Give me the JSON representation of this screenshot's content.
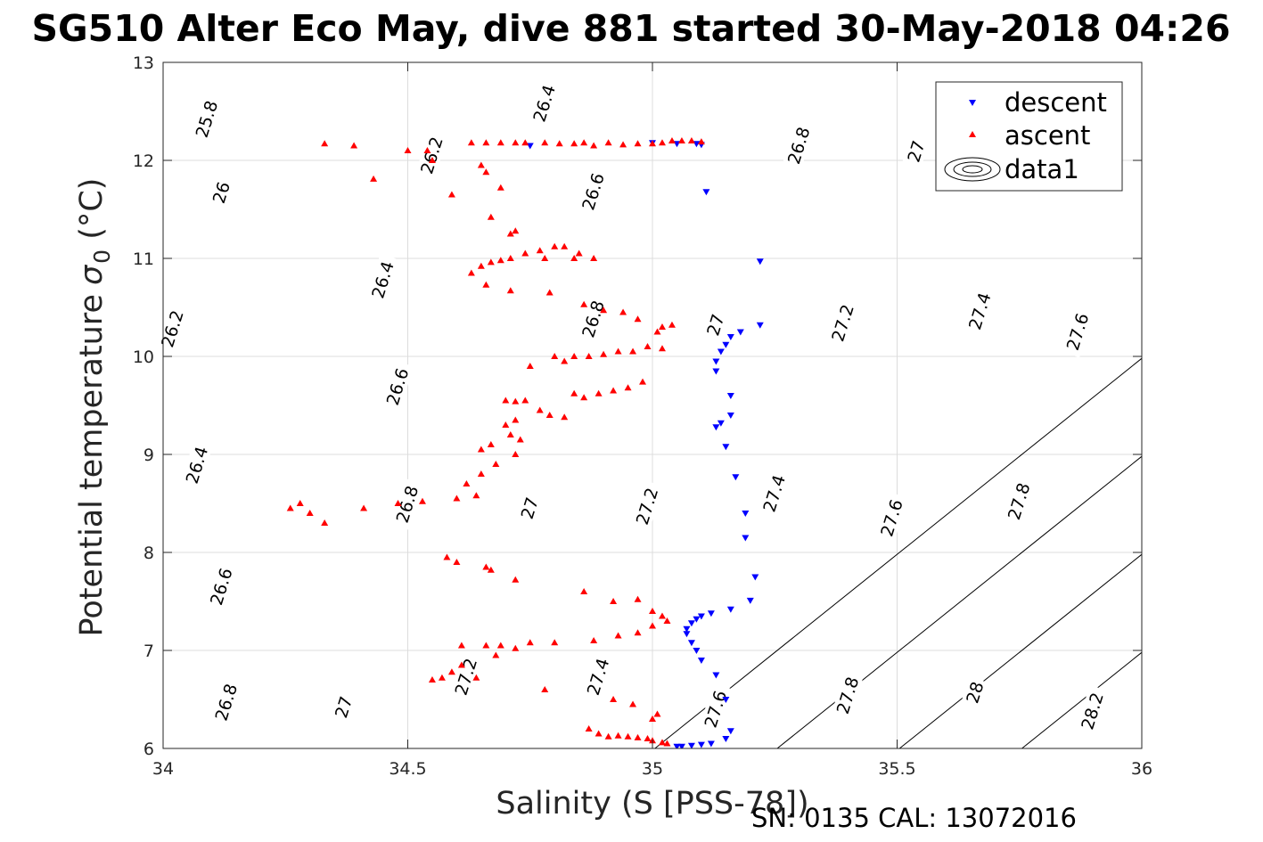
{
  "title": "SG510 Alter Eco May, dive 881 started 30-May-2018 04:26",
  "footer": "SN: 0135  CAL: 13072016",
  "chart_data": {
    "type": "scatter",
    "xlabel": "Salinity (S [PSS-78])",
    "ylabel_prefix": "Potential temperature",
    "ylabel_symbol": "σ",
    "ylabel_subscript": "0",
    "ylabel_suffix": " (°C)",
    "xlim": [
      34,
      36
    ],
    "ylim": [
      6,
      13
    ],
    "xticks": [
      "34",
      "34.5",
      "35",
      "35.5",
      "36"
    ],
    "yticks": [
      "6",
      "7",
      "8",
      "9",
      "10",
      "11",
      "12",
      "13"
    ],
    "grid": true,
    "legend_position": "top-right",
    "legend": [
      "descent",
      "ascent",
      "data1"
    ],
    "colors": {
      "descent": "#0000ff",
      "ascent": "#ff0000",
      "contour": "#000000"
    },
    "contours": [
      {
        "level": "25.8",
        "s_at_t0": 33.505,
        "labels": [
          [
            34.09,
            12.42
          ]
        ]
      },
      {
        "level": "26",
        "s_at_t0": 33.755,
        "labels": [
          [
            34.12,
            11.67
          ]
        ]
      },
      {
        "level": "26.2",
        "s_at_t0": 34.005,
        "labels": [
          [
            34.02,
            10.28
          ],
          [
            34.55,
            12.05
          ]
        ]
      },
      {
        "level": "26.4",
        "s_at_t0": 34.255,
        "labels": [
          [
            34.07,
            8.89
          ],
          [
            34.45,
            10.78
          ],
          [
            34.78,
            12.58
          ]
        ]
      },
      {
        "level": "26.6",
        "s_at_t0": 34.505,
        "labels": [
          [
            34.12,
            7.65
          ],
          [
            34.48,
            9.69
          ],
          [
            34.88,
            11.68
          ]
        ]
      },
      {
        "level": "26.8",
        "s_at_t0": 34.755,
        "labels": [
          [
            34.13,
            6.47
          ],
          [
            34.5,
            8.49
          ],
          [
            34.88,
            10.38
          ],
          [
            35.3,
            12.15
          ]
        ]
      },
      {
        "level": "27",
        "s_at_t0": 35.005,
        "labels": [
          [
            34.37,
            6.42
          ],
          [
            34.75,
            8.45
          ],
          [
            35.13,
            10.32
          ],
          [
            35.54,
            12.09
          ]
        ]
      },
      {
        "level": "27.2",
        "s_at_t0": 35.255,
        "labels": [
          [
            34.62,
            6.73
          ],
          [
            34.99,
            8.47
          ],
          [
            35.39,
            10.34
          ]
        ]
      },
      {
        "level": "27.4",
        "s_at_t0": 35.505,
        "labels": [
          [
            34.89,
            6.73
          ],
          [
            35.25,
            8.6
          ],
          [
            35.67,
            10.46
          ]
        ]
      },
      {
        "level": "27.6",
        "s_at_t0": 35.755,
        "labels": [
          [
            35.13,
            6.4
          ],
          [
            35.49,
            8.35
          ],
          [
            35.87,
            10.25
          ]
        ]
      },
      {
        "level": "27.8",
        "s_at_t0": 36.005,
        "labels": [
          [
            35.4,
            6.54
          ],
          [
            35.75,
            8.52
          ]
        ]
      },
      {
        "level": "28",
        "s_at_t0": 36.255,
        "labels": [
          [
            35.66,
            6.57
          ]
        ]
      },
      {
        "level": "28.2",
        "s_at_t0": 36.505,
        "labels": [
          [
            35.9,
            6.38
          ]
        ]
      }
    ],
    "series": [
      {
        "name": "descent",
        "marker": "triangle-down",
        "points": [
          [
            34.75,
            12.15
          ],
          [
            35.0,
            12.18
          ],
          [
            35.05,
            12.17
          ],
          [
            35.09,
            12.17
          ],
          [
            35.1,
            12.16
          ],
          [
            35.11,
            11.68
          ],
          [
            35.22,
            10.97
          ],
          [
            35.22,
            10.32
          ],
          [
            35.18,
            10.25
          ],
          [
            35.16,
            10.2
          ],
          [
            35.15,
            10.12
          ],
          [
            35.14,
            10.05
          ],
          [
            35.13,
            9.95
          ],
          [
            35.13,
            9.85
          ],
          [
            35.16,
            9.6
          ],
          [
            35.16,
            9.4
          ],
          [
            35.14,
            9.32
          ],
          [
            35.13,
            9.28
          ],
          [
            35.15,
            9.08
          ],
          [
            35.17,
            8.77
          ],
          [
            35.19,
            8.4
          ],
          [
            35.19,
            8.15
          ],
          [
            35.21,
            7.75
          ],
          [
            35.2,
            7.51
          ],
          [
            35.16,
            7.42
          ],
          [
            35.12,
            7.38
          ],
          [
            35.1,
            7.35
          ],
          [
            35.09,
            7.32
          ],
          [
            35.08,
            7.28
          ],
          [
            35.07,
            7.22
          ],
          [
            35.07,
            7.17
          ],
          [
            35.08,
            7.08
          ],
          [
            35.09,
            7.0
          ],
          [
            35.1,
            6.9
          ],
          [
            35.13,
            6.75
          ],
          [
            35.15,
            6.5
          ],
          [
            35.16,
            6.18
          ],
          [
            35.15,
            6.1
          ],
          [
            35.12,
            6.05
          ],
          [
            35.1,
            6.04
          ],
          [
            35.08,
            6.03
          ],
          [
            35.06,
            6.02
          ],
          [
            35.05,
            6.02
          ]
        ]
      },
      {
        "name": "ascent",
        "marker": "triangle-up",
        "points": [
          [
            34.33,
            12.17
          ],
          [
            34.39,
            12.15
          ],
          [
            34.43,
            11.81
          ],
          [
            34.5,
            12.1
          ],
          [
            34.54,
            12.1
          ],
          [
            34.55,
            12.0
          ],
          [
            34.59,
            11.65
          ],
          [
            34.63,
            12.18
          ],
          [
            34.66,
            12.18
          ],
          [
            34.69,
            12.18
          ],
          [
            34.72,
            12.18
          ],
          [
            34.74,
            12.18
          ],
          [
            34.78,
            12.18
          ],
          [
            34.81,
            12.17
          ],
          [
            34.84,
            12.17
          ],
          [
            34.86,
            12.18
          ],
          [
            34.88,
            12.15
          ],
          [
            34.91,
            12.18
          ],
          [
            34.94,
            12.16
          ],
          [
            34.97,
            12.17
          ],
          [
            35.0,
            12.17
          ],
          [
            35.02,
            12.18
          ],
          [
            35.04,
            12.2
          ],
          [
            35.06,
            12.2
          ],
          [
            35.08,
            12.2
          ],
          [
            35.1,
            12.19
          ],
          [
            34.65,
            11.95
          ],
          [
            34.66,
            11.88
          ],
          [
            34.69,
            11.72
          ],
          [
            34.67,
            11.42
          ],
          [
            34.71,
            11.25
          ],
          [
            34.72,
            11.28
          ],
          [
            34.63,
            10.85
          ],
          [
            34.65,
            10.92
          ],
          [
            34.67,
            10.96
          ],
          [
            34.69,
            10.98
          ],
          [
            34.71,
            11.0
          ],
          [
            34.74,
            11.05
          ],
          [
            34.77,
            11.08
          ],
          [
            34.8,
            11.12
          ],
          [
            34.82,
            11.12
          ],
          [
            34.85,
            11.05
          ],
          [
            34.78,
            11.0
          ],
          [
            34.84,
            11.0
          ],
          [
            34.88,
            11.0
          ],
          [
            34.66,
            10.73
          ],
          [
            34.71,
            10.67
          ],
          [
            34.79,
            10.65
          ],
          [
            34.86,
            10.53
          ],
          [
            34.9,
            10.47
          ],
          [
            34.94,
            10.45
          ],
          [
            34.97,
            10.38
          ],
          [
            35.01,
            10.25
          ],
          [
            35.02,
            10.3
          ],
          [
            35.04,
            10.32
          ],
          [
            35.02,
            10.08
          ],
          [
            34.99,
            10.1
          ],
          [
            34.96,
            10.05
          ],
          [
            34.93,
            10.05
          ],
          [
            34.9,
            10.02
          ],
          [
            34.87,
            10.0
          ],
          [
            34.84,
            10.0
          ],
          [
            34.8,
            10.0
          ],
          [
            34.82,
            9.95
          ],
          [
            34.75,
            9.9
          ],
          [
            34.84,
            9.62
          ],
          [
            34.86,
            9.58
          ],
          [
            34.89,
            9.62
          ],
          [
            34.92,
            9.65
          ],
          [
            34.95,
            9.68
          ],
          [
            34.98,
            9.74
          ],
          [
            34.82,
            9.38
          ],
          [
            34.79,
            9.4
          ],
          [
            34.77,
            9.45
          ],
          [
            34.7,
            9.55
          ],
          [
            34.72,
            9.54
          ],
          [
            34.74,
            9.55
          ],
          [
            34.72,
            9.35
          ],
          [
            34.7,
            9.3
          ],
          [
            34.71,
            9.2
          ],
          [
            34.73,
            9.15
          ],
          [
            34.72,
            9.0
          ],
          [
            34.67,
            9.1
          ],
          [
            34.65,
            9.05
          ],
          [
            34.68,
            8.9
          ],
          [
            34.65,
            8.8
          ],
          [
            34.62,
            8.7
          ],
          [
            34.6,
            8.55
          ],
          [
            34.64,
            8.58
          ],
          [
            34.28,
            8.5
          ],
          [
            34.26,
            8.45
          ],
          [
            34.3,
            8.4
          ],
          [
            34.33,
            8.3
          ],
          [
            34.41,
            8.45
          ],
          [
            34.48,
            8.5
          ],
          [
            34.53,
            8.52
          ],
          [
            34.58,
            7.95
          ],
          [
            34.6,
            7.9
          ],
          [
            34.66,
            7.85
          ],
          [
            34.67,
            7.82
          ],
          [
            34.72,
            7.72
          ],
          [
            34.86,
            7.6
          ],
          [
            34.92,
            7.5
          ],
          [
            34.97,
            7.52
          ],
          [
            35.0,
            7.4
          ],
          [
            35.02,
            7.35
          ],
          [
            35.03,
            7.3
          ],
          [
            35.0,
            7.25
          ],
          [
            34.97,
            7.18
          ],
          [
            34.93,
            7.15
          ],
          [
            34.88,
            7.1
          ],
          [
            34.8,
            7.08
          ],
          [
            34.75,
            7.08
          ],
          [
            34.69,
            7.05
          ],
          [
            34.61,
            7.05
          ],
          [
            34.66,
            7.05
          ],
          [
            34.72,
            7.02
          ],
          [
            34.68,
            6.95
          ],
          [
            34.61,
            6.85
          ],
          [
            34.59,
            6.78
          ],
          [
            34.57,
            6.72
          ],
          [
            34.55,
            6.7
          ],
          [
            34.64,
            6.72
          ],
          [
            34.78,
            6.6
          ],
          [
            34.92,
            6.5
          ],
          [
            34.96,
            6.45
          ],
          [
            35.0,
            6.3
          ],
          [
            35.01,
            6.35
          ],
          [
            34.87,
            6.2
          ],
          [
            34.89,
            6.15
          ],
          [
            34.91,
            6.12
          ],
          [
            34.93,
            6.13
          ],
          [
            34.95,
            6.12
          ],
          [
            34.97,
            6.11
          ],
          [
            34.99,
            6.1
          ],
          [
            35.0,
            6.08
          ],
          [
            35.02,
            6.06
          ],
          [
            35.03,
            6.05
          ]
        ]
      }
    ]
  }
}
